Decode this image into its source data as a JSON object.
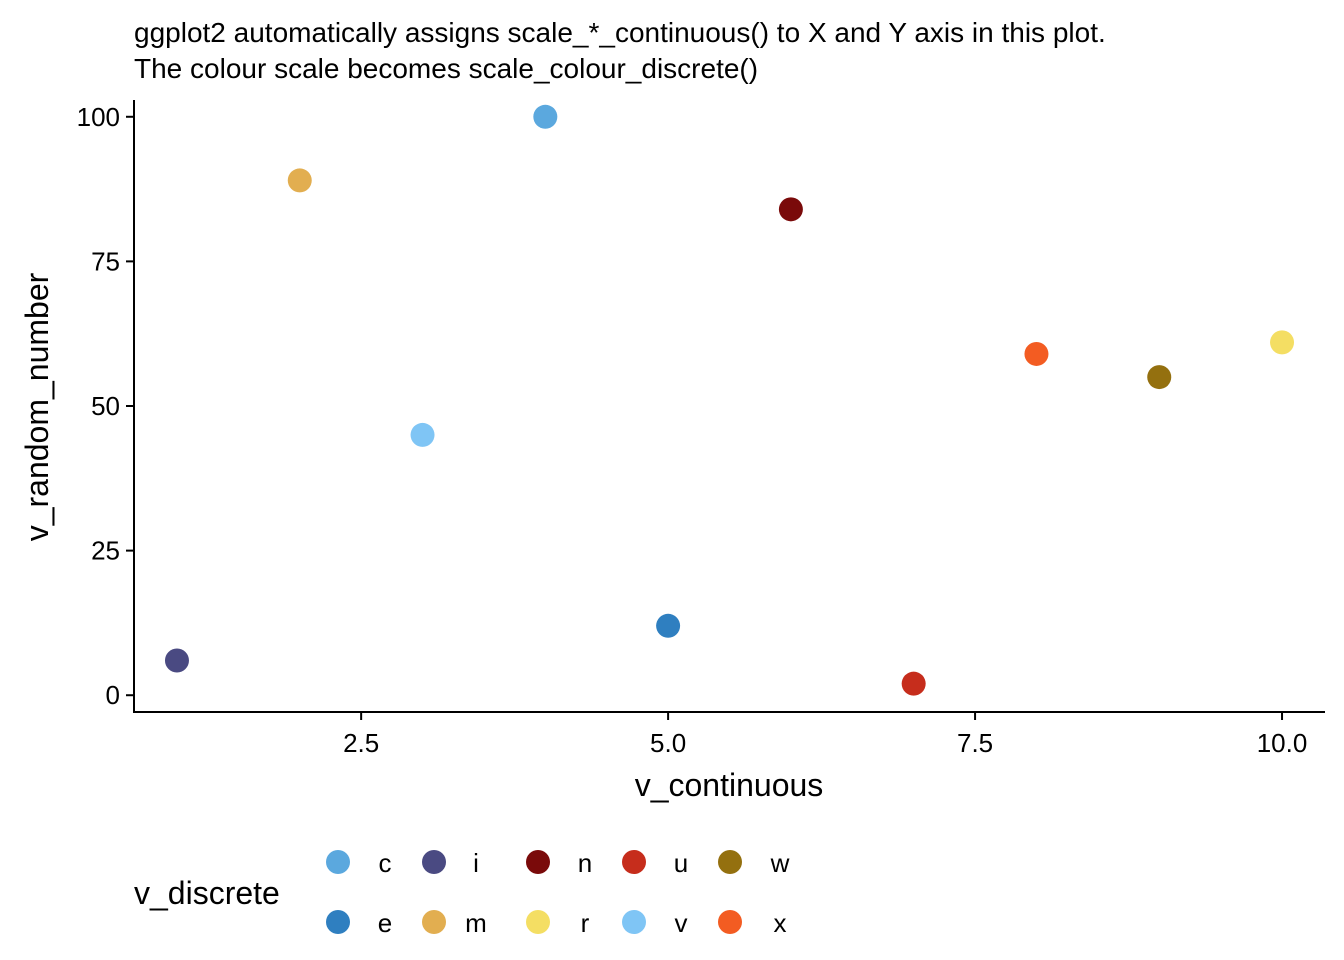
{
  "chart_data": {
    "type": "scatter",
    "title_lines": [
      "ggplot2 automatically assigns scale_*_continuous() to X and Y axis in this plot.",
      "The colour scale becomes scale_colour_discrete()"
    ],
    "xlabel": "v_continuous",
    "ylabel": "v_random_number",
    "xlim": [
      0.65,
      10.35
    ],
    "ylim": [
      -2.9,
      102.9
    ],
    "x_ticks": [
      2.5,
      5.0,
      7.5,
      10.0
    ],
    "x_tick_labels": [
      "2.5",
      "5.0",
      "7.5",
      "10.0"
    ],
    "y_ticks": [
      0,
      25,
      50,
      75,
      100
    ],
    "y_tick_labels": [
      "0",
      "25",
      "50",
      "75",
      "100"
    ],
    "grid": false,
    "legend": {
      "title": "v_discrete",
      "placement": "bottom",
      "rows": [
        [
          "c",
          "i",
          "n",
          "u",
          "w"
        ],
        [
          "e",
          "m",
          "r",
          "v",
          "x"
        ]
      ]
    },
    "colors": {
      "c": "#5BA8DE",
      "e": "#2F7FC0",
      "i": "#4A4A82",
      "m": "#E2AE50",
      "n": "#7A0A0A",
      "r": "#F4DE63",
      "u": "#C62D1C",
      "v": "#7FC5F5",
      "w": "#94700F",
      "x": "#F35C22"
    },
    "points": [
      {
        "x": 1,
        "y": 6,
        "category": "i"
      },
      {
        "x": 2,
        "y": 89,
        "category": "m"
      },
      {
        "x": 3,
        "y": 45,
        "category": "v"
      },
      {
        "x": 4,
        "y": 100,
        "category": "c"
      },
      {
        "x": 5,
        "y": 12,
        "category": "e"
      },
      {
        "x": 6,
        "y": 84,
        "category": "n"
      },
      {
        "x": 7,
        "y": 2,
        "category": "u"
      },
      {
        "x": 8,
        "y": 59,
        "category": "x"
      },
      {
        "x": 9,
        "y": 55,
        "category": "w"
      },
      {
        "x": 10,
        "y": 61,
        "category": "r"
      }
    ]
  }
}
